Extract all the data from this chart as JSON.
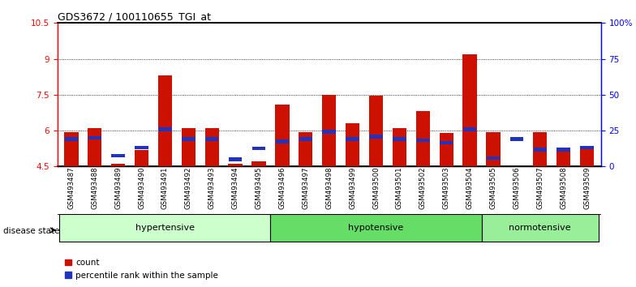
{
  "title": "GDS3672 / 100110655_TGI_at",
  "samples": [
    "GSM493487",
    "GSM493488",
    "GSM493489",
    "GSM493490",
    "GSM493491",
    "GSM493492",
    "GSM493493",
    "GSM493494",
    "GSM493495",
    "GSM493496",
    "GSM493497",
    "GSM493498",
    "GSM493499",
    "GSM493500",
    "GSM493501",
    "GSM493502",
    "GSM493503",
    "GSM493504",
    "GSM493505",
    "GSM493506",
    "GSM493507",
    "GSM493508",
    "GSM493509"
  ],
  "red_values": [
    5.95,
    6.1,
    4.6,
    5.2,
    8.3,
    6.1,
    6.1,
    4.6,
    4.7,
    7.1,
    5.95,
    7.5,
    6.3,
    7.45,
    6.1,
    6.8,
    5.9,
    9.2,
    5.95,
    4.5,
    5.95,
    5.2,
    5.3
  ],
  "blue_values": [
    5.65,
    5.7,
    4.95,
    5.3,
    6.05,
    5.65,
    5.65,
    4.8,
    5.25,
    5.55,
    5.65,
    5.95,
    5.65,
    5.75,
    5.65,
    5.6,
    5.5,
    6.05,
    4.85,
    5.65,
    5.2,
    5.2,
    5.3
  ],
  "groups": [
    {
      "label": "hypertensive",
      "start": 0,
      "end": 9,
      "color": "#ccffcc"
    },
    {
      "label": "hypotensive",
      "start": 9,
      "end": 18,
      "color": "#66dd66"
    },
    {
      "label": "normotensive",
      "start": 18,
      "end": 23,
      "color": "#99ee99"
    }
  ],
  "ylim_left": [
    4.5,
    10.5
  ],
  "ylim_right": [
    0,
    100
  ],
  "yticks_left": [
    4.5,
    6.0,
    7.5,
    9.0,
    10.5
  ],
  "yticks_right": [
    0,
    25,
    50,
    75,
    100
  ],
  "ytick_labels_left": [
    "4.5",
    "6",
    "7.5",
    "9",
    "10.5"
  ],
  "ytick_labels_right": [
    "0",
    "25",
    "50",
    "75",
    "100%"
  ],
  "grid_values": [
    6.0,
    7.5,
    9.0
  ],
  "bar_color": "#cc1100",
  "blue_color": "#2233bb",
  "bg_color": "#ffffff",
  "legend_count": "count",
  "legend_pct": "percentile rank within the sample",
  "disease_label": "disease state"
}
